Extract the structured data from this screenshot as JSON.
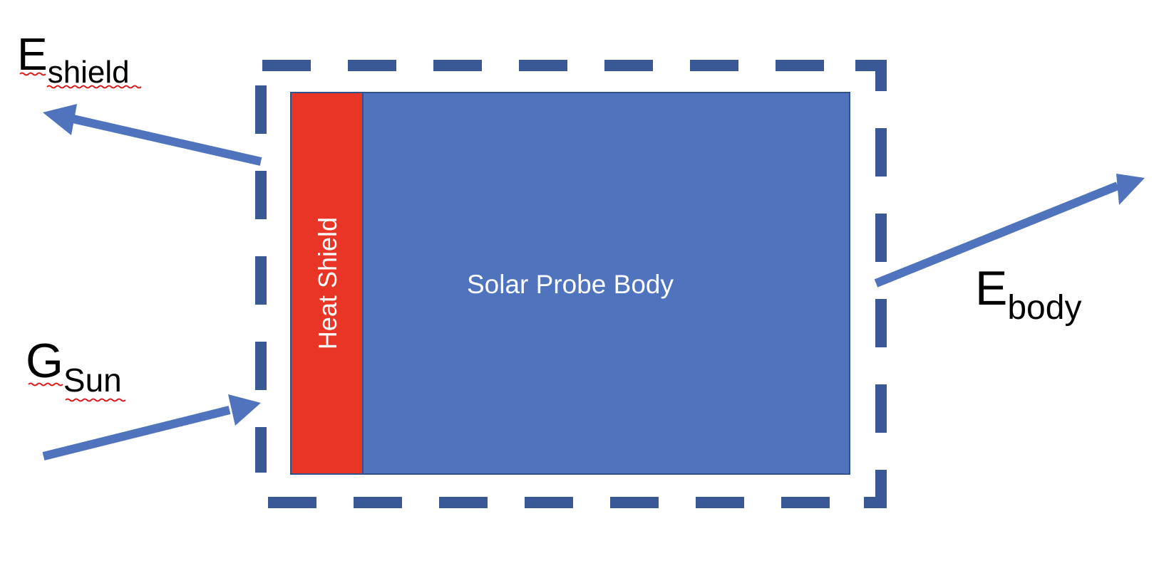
{
  "colors": {
    "boundary": "#3a5896",
    "body_fill": "#4f73bd",
    "shield_fill": "#e83525",
    "arrow": "#4f73bd",
    "text_dark": "#000000",
    "text_light": "#ffffff",
    "spellcheck": "#e0191b"
  },
  "labels": {
    "e_shield_main": "E",
    "e_shield_sub": "shield",
    "g_sun_main": "G",
    "g_sun_sub": "Sun",
    "e_body_main": "E",
    "e_body_sub": "body",
    "heat_shield": "Heat Shield",
    "probe_body": "Solar Probe Body"
  },
  "icons": {
    "e_shield_arrow": "arrow-left-up-icon",
    "g_sun_arrow": "arrow-right-up-icon",
    "e_body_arrow": "arrow-right-up-icon"
  }
}
